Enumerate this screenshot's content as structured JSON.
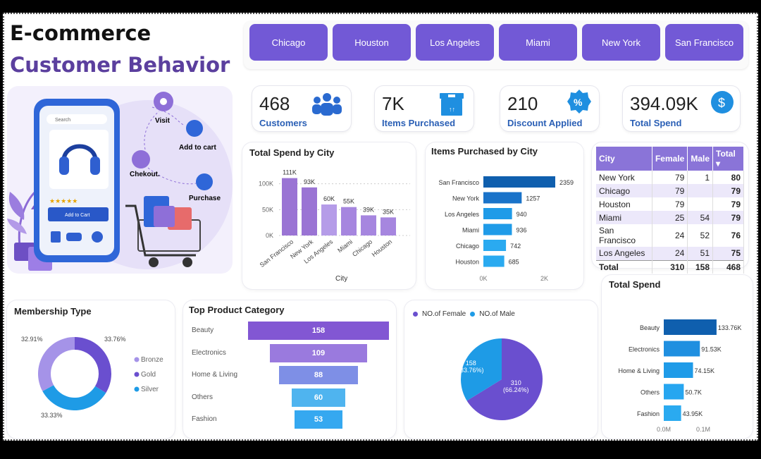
{
  "header": {
    "line1": "E-commerce",
    "line2": "Customer Behavior"
  },
  "slicers": [
    "Chicago",
    "Houston",
    "Los Angeles",
    "Miami",
    "New York",
    "San Francisco"
  ],
  "kpis": [
    {
      "value": "468",
      "label": "Customers",
      "icon": "people-icon"
    },
    {
      "value": "7K",
      "label": "Items Purchased",
      "icon": "box-icon"
    },
    {
      "value": "210",
      "label": "Discount Applied",
      "icon": "percent-badge-icon"
    },
    {
      "value": "394.09K",
      "label": "Total Spend",
      "icon": "dollar-icon"
    }
  ],
  "illustration": {
    "search": "Search",
    "add_to_cart_btn": "Add to Cart",
    "steps": [
      "Visit",
      "Add to cart",
      "Chekout.",
      "Purchase"
    ]
  },
  "colors": {
    "accent": "#7259d6",
    "blue": "#1a73c9",
    "light_blue": "#29b0f0",
    "purple": "#8e6fd8"
  },
  "spend_by_city": {
    "title": "Total Spend by City",
    "xlabel": "City",
    "yticks": [
      "100K",
      "50K",
      "0K"
    ]
  },
  "items_by_city": {
    "title": "Items Purchased by City",
    "xticks": [
      "0K",
      "2K"
    ]
  },
  "matrix": {
    "headers": [
      "City",
      "Female",
      "Male",
      "Total"
    ],
    "rows": [
      [
        "New York",
        "79",
        "1",
        "80"
      ],
      [
        "Chicago",
        "79",
        "",
        "79"
      ],
      [
        "Houston",
        "79",
        "",
        "79"
      ],
      [
        "Miami",
        "25",
        "54",
        "79"
      ],
      [
        "San Francisco",
        "24",
        "52",
        "76"
      ],
      [
        "Los Angeles",
        "24",
        "51",
        "75"
      ]
    ],
    "total": [
      "Total",
      "310",
      "158",
      "468"
    ]
  },
  "membership": {
    "title": "Membership Type",
    "labels": {
      "bronze": "32.91%",
      "gold": "33.76%",
      "silver": "33.33%"
    }
  },
  "top_category": {
    "title": "Top Product Category"
  },
  "gender": {
    "legend": [
      "NO.of Female",
      "NO.of Male"
    ],
    "male_label": "158",
    "male_pct": "(33.76%)",
    "female_label": "310",
    "female_pct": "(66.24%)"
  },
  "total_spend": {
    "title": "Total Spend",
    "xticks": [
      "0.0M",
      "0.1M"
    ]
  },
  "chart_data": [
    {
      "type": "bar",
      "title": "Total Spend by City",
      "xlabel": "City",
      "categories": [
        "San Francisco",
        "New York",
        "Los Angeles",
        "Miami",
        "Chicago",
        "Houston"
      ],
      "values": [
        111000,
        93000,
        60000,
        55000,
        39000,
        35000
      ],
      "data_labels": [
        "111K",
        "93K",
        "60K",
        "55K",
        "39K",
        "35K"
      ],
      "ylim": [
        0,
        120000
      ]
    },
    {
      "type": "bar",
      "orientation": "horizontal",
      "title": "Items Purchased by City",
      "categories": [
        "San Francisco",
        "New York",
        "Los Angeles",
        "Miami",
        "Chicago",
        "Houston"
      ],
      "values": [
        2359,
        1257,
        940,
        936,
        742,
        685
      ],
      "xlim": [
        0,
        2500
      ]
    },
    {
      "type": "pie",
      "title": "Membership Type",
      "categories": [
        "Bronze",
        "Gold",
        "Silver"
      ],
      "values": [
        32.91,
        33.76,
        33.33
      ],
      "colors": [
        "#a593e8",
        "#6a4fcf",
        "#1e9be6"
      ]
    },
    {
      "type": "bar",
      "orientation": "funnel",
      "title": "Top Product Category",
      "categories": [
        "Beauty",
        "Electronics",
        "Home & Living",
        "Others",
        "Fashion"
      ],
      "values": [
        158,
        109,
        88,
        60,
        53
      ]
    },
    {
      "type": "pie",
      "categories": [
        "NO.of Female",
        "NO.of Male"
      ],
      "values": [
        310,
        158
      ],
      "percents": [
        66.24,
        33.76
      ]
    },
    {
      "type": "bar",
      "orientation": "horizontal",
      "title": "Total Spend",
      "categories": [
        "Beauty",
        "Electronics",
        "Home & Living",
        "Others",
        "Fashion"
      ],
      "values": [
        133760,
        91530,
        74150,
        50700,
        43950
      ],
      "data_labels": [
        "133.76K",
        "91.53K",
        "74.15K",
        "50.7K",
        "43.95K"
      ],
      "xlim": [
        0,
        140000
      ]
    }
  ]
}
